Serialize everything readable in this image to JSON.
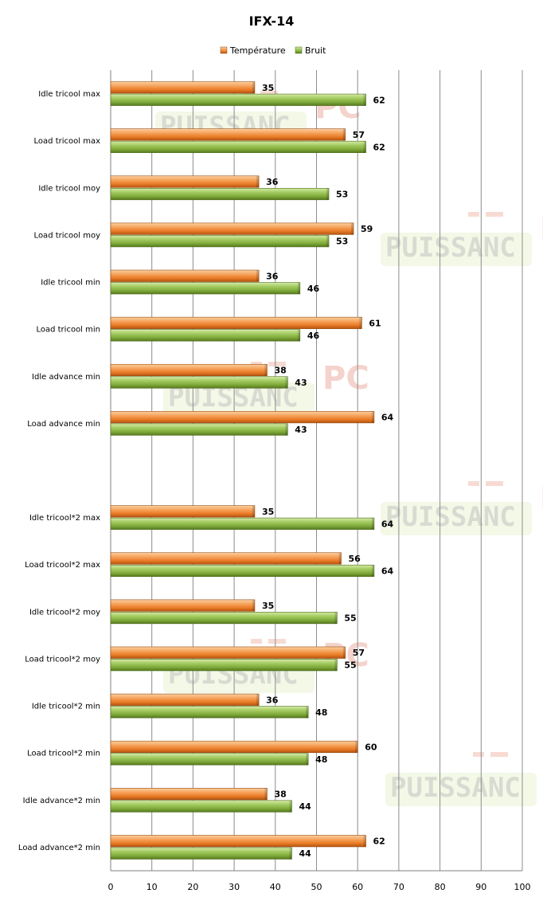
{
  "chart_data": {
    "type": "bar",
    "orientation": "horizontal",
    "title": "IFX-14",
    "legend_position": "top",
    "xlim": [
      0,
      100
    ],
    "x_ticks": [
      0,
      10,
      20,
      30,
      40,
      50,
      60,
      70,
      80,
      90,
      100
    ],
    "grid": true,
    "categories": [
      "Idle tricool max",
      "Load tricool max",
      "Idle tricool moy",
      "Load tricool moy",
      "Idle tricool min",
      "Load tricool min",
      "Idle advance min",
      "Load advance min",
      "",
      "Idle tricool*2 max",
      "Load tricool*2 max",
      "Idle tricool*2 moy",
      "Load tricool*2 moy",
      "Idle tricool*2 min",
      "Load tricool*2 min",
      "Idle advance*2 min",
      "Load advance*2 min"
    ],
    "series": [
      {
        "name": "Température",
        "color": "#f08a3c",
        "values": [
          35,
          57,
          36,
          59,
          36,
          61,
          38,
          64,
          null,
          35,
          56,
          35,
          57,
          36,
          60,
          38,
          62
        ]
      },
      {
        "name": "Bruit",
        "color": "#8cb64a",
        "values": [
          62,
          62,
          53,
          53,
          46,
          46,
          43,
          43,
          null,
          64,
          64,
          55,
          55,
          48,
          48,
          44,
          44
        ]
      }
    ]
  },
  "watermark": {
    "text": "PUISSANC",
    "logo_text": "PC"
  }
}
